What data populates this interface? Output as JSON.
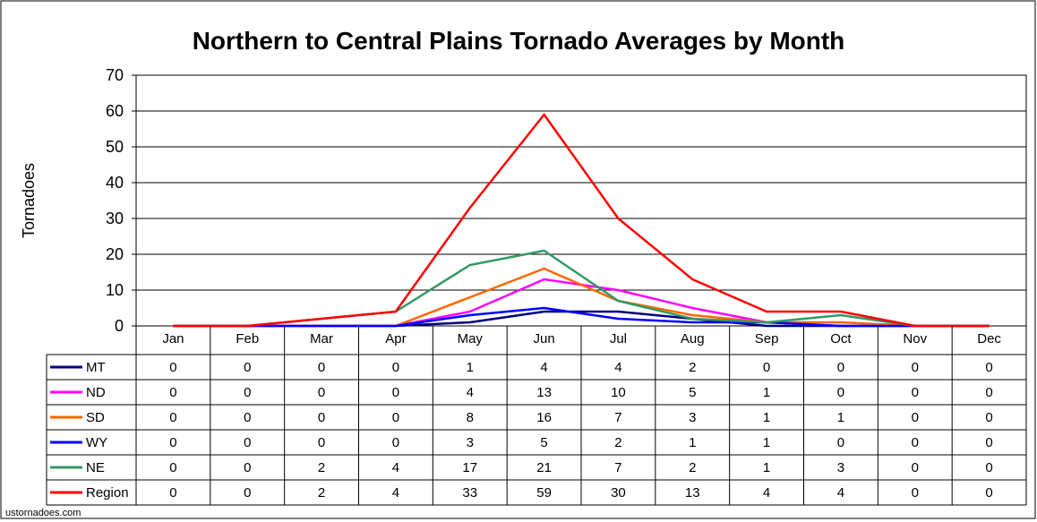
{
  "chart_data": {
    "type": "line",
    "title": "Northern to Central Plains Tornado Averages by Month",
    "xlabel": "",
    "ylabel": "Tornadoes",
    "ylim": [
      0,
      70
    ],
    "yticks": [
      0,
      10,
      20,
      30,
      40,
      50,
      60,
      70
    ],
    "grid": true,
    "legend": "data-table",
    "categories": [
      "Jan",
      "Feb",
      "Mar",
      "Apr",
      "May",
      "Jun",
      "Jul",
      "Aug",
      "Sep",
      "Oct",
      "Nov",
      "Dec"
    ],
    "series": [
      {
        "name": "MT",
        "color": "#000080",
        "values": [
          0,
          0,
          0,
          0,
          1,
          4,
          4,
          2,
          0,
          0,
          0,
          0
        ]
      },
      {
        "name": "ND",
        "color": "#ff00ff",
        "values": [
          0,
          0,
          0,
          0,
          4,
          13,
          10,
          5,
          1,
          0,
          0,
          0
        ]
      },
      {
        "name": "SD",
        "color": "#ff6600",
        "values": [
          0,
          0,
          0,
          0,
          8,
          16,
          7,
          3,
          1,
          1,
          0,
          0
        ]
      },
      {
        "name": "WY",
        "color": "#0000ff",
        "values": [
          0,
          0,
          0,
          0,
          3,
          5,
          2,
          1,
          1,
          0,
          0,
          0
        ]
      },
      {
        "name": "NE",
        "color": "#339966",
        "values": [
          0,
          0,
          2,
          4,
          17,
          21,
          7,
          2,
          1,
          3,
          0,
          0
        ]
      },
      {
        "name": "Region",
        "color": "#ff0000",
        "values": [
          0,
          0,
          2,
          4,
          33,
          59,
          30,
          13,
          4,
          4,
          0,
          0
        ]
      }
    ]
  },
  "footer": {
    "credit": "ustornadoes.com"
  }
}
